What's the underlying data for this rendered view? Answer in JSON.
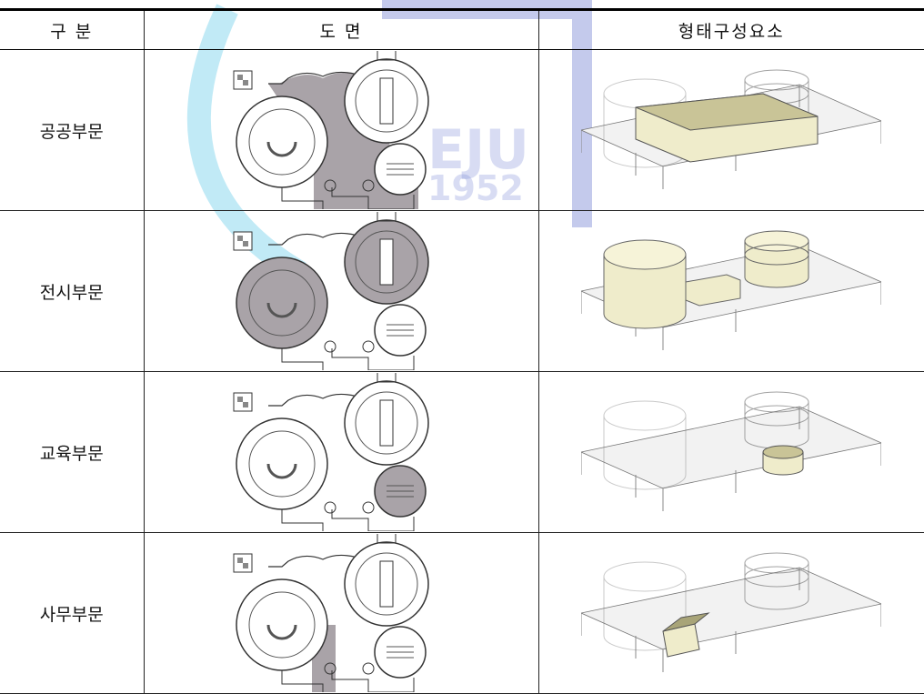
{
  "table": {
    "header": [
      "구 분",
      "도 면",
      "형태구성요소"
    ],
    "rows": [
      [
        "공공부문"
      ],
      [
        "전시부문"
      ],
      [
        "교육부문"
      ],
      [
        "사무부문"
      ]
    ]
  }
}
